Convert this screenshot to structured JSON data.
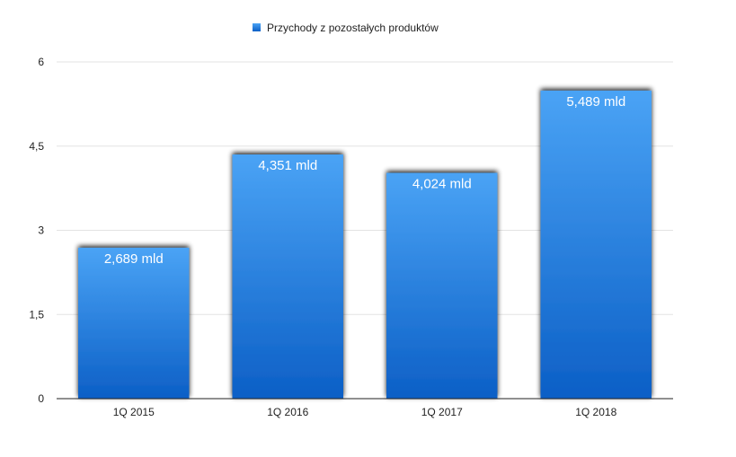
{
  "chart_data": {
    "type": "bar",
    "categories": [
      "1Q 2015",
      "1Q 2016",
      "1Q 2017",
      "1Q 2018"
    ],
    "series": [
      {
        "name": "Przychody z pozostałych produktów",
        "values": [
          2.689,
          4.351,
          4.024,
          5.489
        ],
        "labels": [
          "2,689 mld",
          "4,351 mld",
          "4,024 mld",
          "5,489 mld"
        ]
      }
    ],
    "ylim": [
      0,
      6
    ],
    "yticks": [
      0,
      1.5,
      3,
      4.5,
      6
    ],
    "ytick_labels": [
      "0",
      "1,5",
      "3",
      "4,5",
      "6"
    ],
    "grid": true,
    "legend_position": "top-center",
    "colors": {
      "bar_top": "#4aa3f5",
      "bar_bottom": "#0c5fc6",
      "grid": "#e3e3e3",
      "axis": "#222222"
    }
  }
}
